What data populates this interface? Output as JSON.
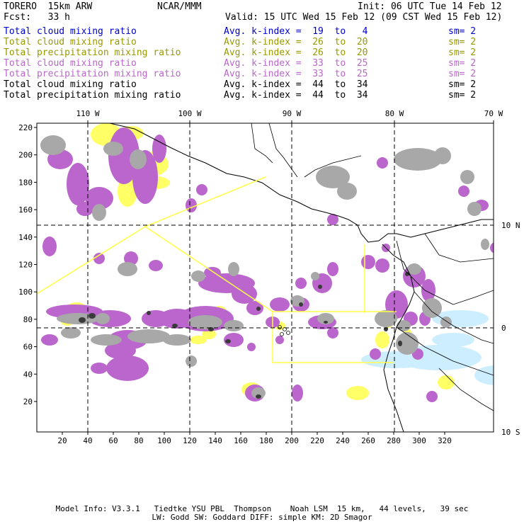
{
  "header": {
    "model": "TORERO  15km ARW",
    "center": "NCAR/MMM",
    "init": "Init: 06 UTC Tue 14 Feb 12",
    "fcst": "Fcst:   33 h",
    "valid": "Valid: 15 UTC Wed 15 Feb 12 (09 CST Wed 15 Feb 12)"
  },
  "legend": [
    {
      "field": "Total cloud mixing ratio",
      "kindex": "Avg. k-index =  19  to   4",
      "sm": "sm= 2",
      "color": "#0000cc"
    },
    {
      "field": "Total cloud mixing ratio",
      "kindex": "Avg. k-index =  26  to  20",
      "sm": "sm= 2",
      "color": "#999900"
    },
    {
      "field": "Total precipitation mixing ratio",
      "kindex": "Avg. k-index =  26  to  20",
      "sm": "sm= 2",
      "color": "#999900"
    },
    {
      "field": "Total cloud mixing ratio",
      "kindex": "Avg. k-index =  33  to  25",
      "sm": "sm= 2",
      "color": "#bb66cc"
    },
    {
      "field": "Total precipitation mixing ratio",
      "kindex": "Avg. k-index =  33  to  25",
      "sm": "sm= 2",
      "color": "#bb66cc"
    },
    {
      "field": "Total cloud mixing ratio",
      "kindex": "Avg. k-index =  44  to  34",
      "sm": "sm= 2",
      "color": "#000000"
    },
    {
      "field": "Total precipitation mixing ratio",
      "kindex": "Avg. k-index =  44  to  34",
      "sm": "sm= 2",
      "color": "#000000"
    }
  ],
  "map": {
    "lon_labels": [
      "110 W",
      "100 W",
      "90 W",
      "80 W",
      "70 W"
    ],
    "lat_labels": [
      "10 N",
      "0",
      "10 S"
    ],
    "x_ticks": [
      "20",
      "40",
      "60",
      "80",
      "100",
      "120",
      "140",
      "160",
      "180",
      "200",
      "220",
      "240",
      "260",
      "280",
      "300",
      "320"
    ],
    "y_ticks": [
      "220",
      "200",
      "180",
      "160",
      "140",
      "120",
      "100",
      "80",
      "60",
      "40",
      "20"
    ],
    "colors": {
      "yellow": "#ffff66",
      "purple": "#bb66cc",
      "gray": "#a8a8a8",
      "dark": "#3a3a3a",
      "cyan": "#cceeff",
      "border": "#ffff44"
    }
  },
  "footer": {
    "line1": "Model Info: V3.3.1   Tiedtke YSU PBL  Thompson    Noah LSM  15 km,   44 levels,   39 sec",
    "line2": "LW: Godd SW: Goddard DIFF: simple KM: 2D Smagor"
  }
}
